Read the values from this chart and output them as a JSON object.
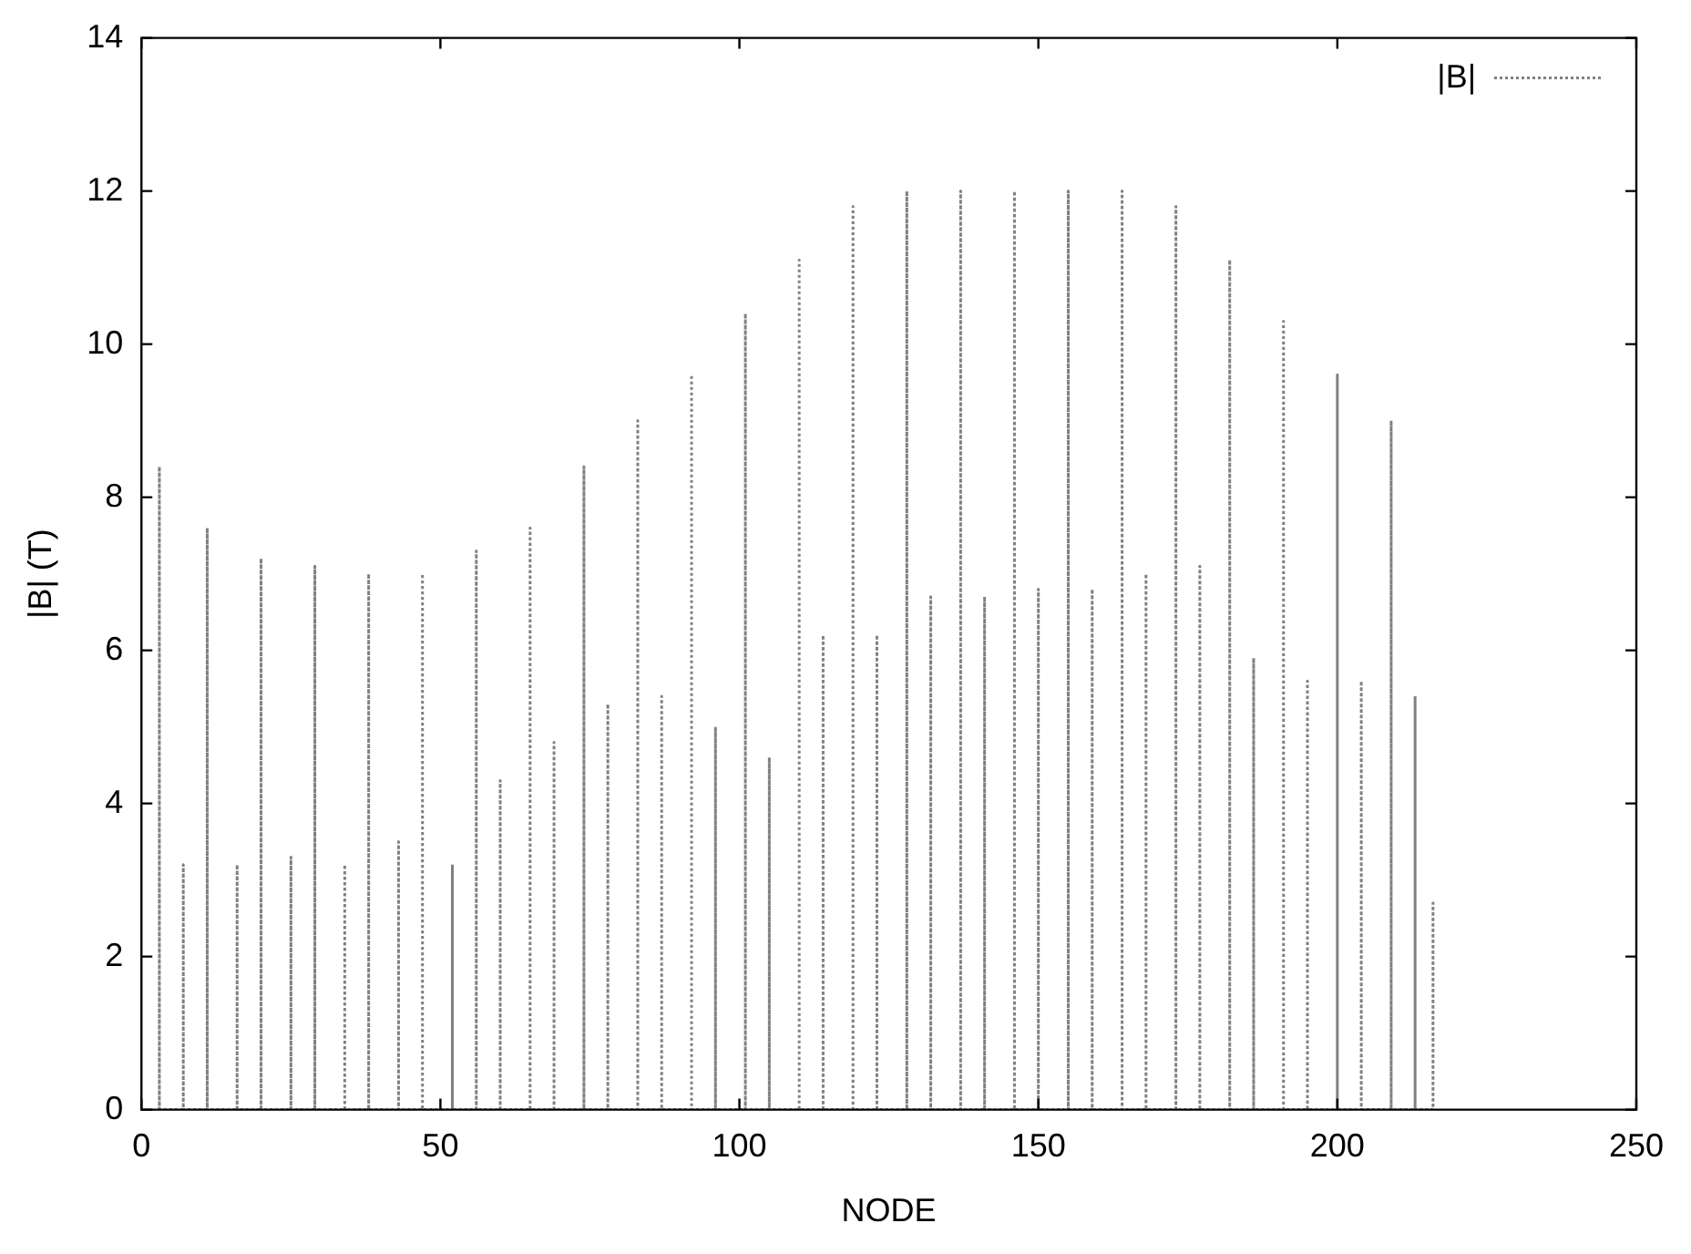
{
  "chart_data": {
    "type": "line",
    "xlabel": "NODE",
    "ylabel": "|B| (T)",
    "xlim": [
      0,
      250
    ],
    "xticks": [
      0,
      50,
      100,
      150,
      200,
      250
    ],
    "ylim": [
      0,
      14
    ],
    "yticks": [
      0,
      2,
      4,
      6,
      8,
      10,
      12,
      14
    ],
    "grid": false,
    "legend": "top right",
    "line_style": "dotted",
    "marker": "none",
    "series": [
      {
        "name": "|B|",
        "color": "#808080",
        "x": [
          3,
          3,
          3,
          7,
          7,
          7,
          11,
          11,
          11,
          16,
          16,
          16,
          20,
          20,
          20,
          25,
          25,
          25,
          29,
          29,
          29,
          34,
          34,
          34,
          38,
          38,
          38,
          43,
          43,
          43,
          47,
          47,
          47,
          52,
          52,
          52,
          56,
          56,
          56,
          60,
          60,
          60,
          65,
          65,
          65,
          69,
          69,
          69,
          74,
          74,
          74,
          78,
          78,
          78,
          83,
          83,
          83,
          87,
          87,
          87,
          92,
          92,
          92,
          96,
          96,
          96,
          101,
          101,
          101,
          105,
          105,
          105,
          110,
          110,
          110,
          114,
          114,
          114,
          119,
          119,
          119,
          123,
          123,
          123,
          128,
          128,
          128,
          132,
          132,
          132,
          137,
          137,
          137,
          141,
          141,
          141,
          146,
          146,
          146,
          150,
          150,
          150,
          155,
          155,
          155,
          159,
          159,
          159,
          164,
          164,
          164,
          168,
          168,
          168,
          173,
          173,
          173,
          177,
          177,
          177,
          182,
          182,
          182,
          186,
          186,
          186,
          191,
          191,
          191,
          195,
          195,
          195,
          200,
          200,
          200,
          204,
          204,
          204,
          209,
          209,
          209,
          213,
          213,
          213,
          216,
          216,
          216
        ],
        "values": [
          0,
          8.4,
          0,
          0,
          3.2,
          0,
          0,
          7.6,
          0,
          0,
          3.2,
          0,
          0,
          7.2,
          0,
          0,
          3.3,
          0,
          0,
          7.1,
          0,
          0,
          3.2,
          0,
          0,
          7.0,
          0,
          0,
          3.5,
          0,
          0,
          7.0,
          0,
          0,
          3.2,
          0,
          0,
          7.3,
          0,
          0,
          4.3,
          0,
          0,
          7.6,
          0,
          0,
          4.8,
          0,
          0,
          8.4,
          0,
          0,
          5.3,
          0,
          0,
          9.0,
          0,
          0,
          5.4,
          0,
          0,
          9.6,
          0,
          0,
          5.0,
          0,
          0,
          10.4,
          0,
          0,
          4.6,
          0,
          0,
          11.1,
          0,
          0,
          6.2,
          0,
          0,
          11.8,
          0,
          0,
          6.2,
          0,
          0,
          12.0,
          0,
          0,
          6.7,
          0,
          0,
          12.0,
          0,
          0,
          6.7,
          0,
          0,
          12.0,
          0,
          0,
          6.8,
          0,
          0,
          12.0,
          0,
          0,
          6.8,
          0,
          0,
          12.0,
          0,
          0,
          7.0,
          0,
          0,
          11.8,
          0,
          0,
          7.1,
          0,
          0,
          11.1,
          0,
          0,
          5.9,
          0,
          0,
          10.3,
          0,
          0,
          5.6,
          0,
          0,
          9.6,
          0,
          0,
          5.6,
          0,
          0,
          9.0,
          0,
          0,
          5.4,
          0,
          0,
          2.7,
          0
        ]
      }
    ]
  }
}
